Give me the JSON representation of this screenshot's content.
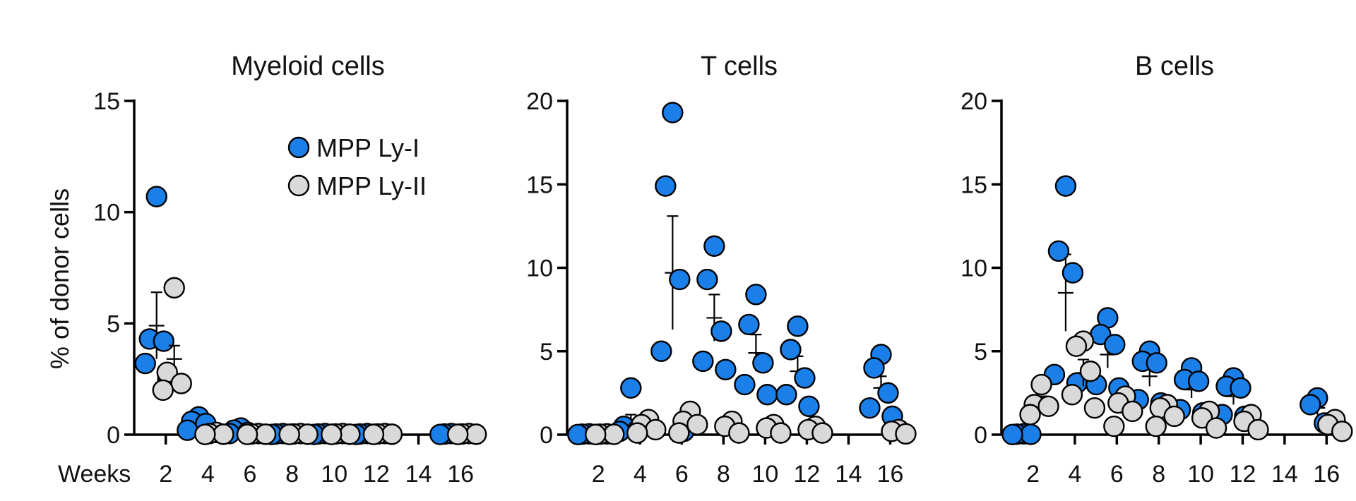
{
  "colors": {
    "mpp_ly_i": "#1a7fe8",
    "mpp_ly_ii": "#d9d9d9",
    "axis": "#000000"
  },
  "figure": {
    "ylabel": "% of donor cells",
    "xunit_label": "Weeks",
    "legend": {
      "items": [
        {
          "label": "MPP Ly-I",
          "color_key": "mpp_ly_i"
        },
        {
          "label": "MPP Ly-II",
          "color_key": "mpp_ly_ii"
        }
      ],
      "placement": "top-right of first panel"
    }
  },
  "chart_data": [
    {
      "type": "scatter",
      "title": "Myeloid cells",
      "xlabel": "",
      "ylabel": "% of donor cells",
      "xticks": [
        2,
        4,
        6,
        8,
        10,
        12,
        14,
        16
      ],
      "yticks": [
        0,
        5,
        10,
        15
      ],
      "ylim": [
        0,
        15
      ],
      "xlim": [
        0.5,
        17
      ],
      "series": [
        {
          "name": "MPP Ly-I",
          "color_key": "mpp_ly_i",
          "groups": [
            {
              "week": 2,
              "values": [
                10.7,
                4.3,
                4.2,
                3.2,
                2.5
              ],
              "mean": 4.9,
              "sem": 1.5
            },
            {
              "week": 4,
              "values": [
                0.8,
                0.6,
                0.5,
                0.2
              ],
              "mean": 0.5,
              "sem": 0.1
            },
            {
              "week": 6,
              "values": [
                0.3,
                0.2,
                0.1,
                0.05
              ],
              "mean": 0.15,
              "sem": 0.05
            },
            {
              "week": 8,
              "values": [
                0.05,
                0.03,
                0.02,
                0.01
              ],
              "mean": 0.03,
              "sem": 0.01
            },
            {
              "week": 10,
              "values": [
                0.05,
                0.03,
                0.02,
                0.01
              ],
              "mean": 0.03,
              "sem": 0.01
            },
            {
              "week": 12,
              "values": [
                0.05,
                0.03,
                0.02,
                0.01
              ],
              "mean": 0.03,
              "sem": 0.01
            },
            {
              "week": 16,
              "values": [
                0.05,
                0.03,
                0.02,
                0.01
              ],
              "mean": 0.03,
              "sem": 0.01
            }
          ]
        },
        {
          "name": "MPP Ly-II",
          "color_key": "mpp_ly_ii",
          "groups": [
            {
              "week": 2,
              "values": [
                6.6,
                2.8,
                2.3,
                2.0
              ],
              "mean": 3.4,
              "sem": 0.6
            },
            {
              "week": 4,
              "values": [
                0.1,
                0.05,
                0.02,
                0.01
              ],
              "mean": 0.05,
              "sem": 0.02
            },
            {
              "week": 6,
              "values": [
                0.05,
                0.03,
                0.02,
                0.01
              ],
              "mean": 0.03,
              "sem": 0.01
            },
            {
              "week": 8,
              "values": [
                0.05,
                0.03,
                0.02,
                0.01
              ],
              "mean": 0.03,
              "sem": 0.01
            },
            {
              "week": 10,
              "values": [
                0.05,
                0.03,
                0.02,
                0.01
              ],
              "mean": 0.03,
              "sem": 0.01
            },
            {
              "week": 12,
              "values": [
                0.05,
                0.03,
                0.02,
                0.01
              ],
              "mean": 0.03,
              "sem": 0.01
            },
            {
              "week": 16,
              "values": [
                0.05,
                0.03,
                0.02,
                0.01
              ],
              "mean": 0.03,
              "sem": 0.01
            }
          ]
        }
      ]
    },
    {
      "type": "scatter",
      "title": "T cells",
      "xlabel": "",
      "ylabel": "",
      "xticks": [
        2,
        4,
        6,
        8,
        10,
        12,
        14,
        16
      ],
      "yticks": [
        0,
        5,
        10,
        15,
        20
      ],
      "ylim": [
        0,
        20
      ],
      "xlim": [
        0.5,
        17
      ],
      "series": [
        {
          "name": "MPP Ly-I",
          "color_key": "mpp_ly_i",
          "groups": [
            {
              "week": 2,
              "values": [
                0.05,
                0.03,
                0.02,
                0.01
              ],
              "mean": 0.03,
              "sem": 0.01
            },
            {
              "week": 4,
              "values": [
                2.8,
                0.5,
                0.3,
                0.2
              ],
              "mean": 0.9,
              "sem": 0.3
            },
            {
              "week": 6,
              "values": [
                19.3,
                14.9,
                9.3,
                5.0,
                0.2
              ],
              "mean": 9.7,
              "sem": 3.4
            },
            {
              "week": 8,
              "values": [
                11.3,
                9.3,
                6.2,
                4.4,
                3.9
              ],
              "mean": 7.0,
              "sem": 1.4
            },
            {
              "week": 10,
              "values": [
                8.4,
                6.6,
                4.3,
                3.0,
                2.4
              ],
              "mean": 4.9,
              "sem": 1.1
            },
            {
              "week": 12,
              "values": [
                6.5,
                5.1,
                3.4,
                2.4,
                1.7
              ],
              "mean": 3.8,
              "sem": 0.9
            },
            {
              "week": 16,
              "values": [
                4.8,
                4.0,
                2.5,
                1.6,
                1.1
              ],
              "mean": 2.8,
              "sem": 0.7
            }
          ]
        },
        {
          "name": "MPP Ly-II",
          "color_key": "mpp_ly_ii",
          "groups": [
            {
              "week": 2,
              "values": [
                0.05,
                0.03,
                0.02,
                0.01
              ],
              "mean": 0.03,
              "sem": 0.01
            },
            {
              "week": 4,
              "values": [
                0.9,
                0.6,
                0.3,
                0.1
              ],
              "mean": 0.5,
              "sem": 0.2
            },
            {
              "week": 6,
              "values": [
                1.4,
                0.8,
                0.6,
                0.1
              ],
              "mean": 0.7,
              "sem": 0.3
            },
            {
              "week": 8,
              "values": [
                0.8,
                0.5,
                0.1
              ],
              "mean": 0.5,
              "sem": 0.2
            },
            {
              "week": 10,
              "values": [
                0.6,
                0.4,
                0.1
              ],
              "mean": 0.4,
              "sem": 0.15
            },
            {
              "week": 12,
              "values": [
                0.5,
                0.3,
                0.1
              ],
              "mean": 0.3,
              "sem": 0.1
            },
            {
              "week": 16,
              "values": [
                0.3,
                0.2,
                0.05
              ],
              "mean": 0.2,
              "sem": 0.1
            }
          ]
        }
      ]
    },
    {
      "type": "scatter",
      "title": "B cells",
      "xlabel": "",
      "ylabel": "",
      "xticks": [
        2,
        4,
        6,
        8,
        10,
        12,
        14,
        16
      ],
      "yticks": [
        0,
        5,
        10,
        15,
        20
      ],
      "ylim": [
        0,
        20
      ],
      "xlim": [
        0.5,
        17
      ],
      "series": [
        {
          "name": "MPP Ly-I",
          "color_key": "mpp_ly_i",
          "groups": [
            {
              "week": 2,
              "values": [
                0.05,
                0.03,
                0.02,
                0.01
              ],
              "mean": 0.03,
              "sem": 0.01
            },
            {
              "week": 4,
              "values": [
                14.9,
                11.0,
                9.7,
                3.6,
                3.1
              ],
              "mean": 8.5,
              "sem": 2.3
            },
            {
              "week": 6,
              "values": [
                7.0,
                6.0,
                5.4,
                3.0,
                2.8
              ],
              "mean": 4.8,
              "sem": 0.8
            },
            {
              "week": 8,
              "values": [
                5.0,
                4.4,
                4.3,
                2.1,
                1.9
              ],
              "mean": 3.5,
              "sem": 0.6
            },
            {
              "week": 10,
              "values": [
                4.0,
                3.3,
                3.2,
                1.5,
                1.3
              ],
              "mean": 2.7,
              "sem": 0.5
            },
            {
              "week": 12,
              "values": [
                3.4,
                2.9,
                2.8,
                1.2,
                1.1
              ],
              "mean": 2.3,
              "sem": 0.5
            },
            {
              "week": 16,
              "values": [
                2.2,
                1.8,
                0.7
              ],
              "mean": 1.6,
              "sem": 0.4
            }
          ]
        },
        {
          "name": "MPP Ly-II",
          "color_key": "mpp_ly_ii",
          "groups": [
            {
              "week": 2,
              "values": [
                3.0,
                1.8,
                1.7,
                1.2
              ],
              "mean": 1.9,
              "sem": 0.4
            },
            {
              "week": 4,
              "values": [
                5.6,
                5.3,
                3.8,
                2.4,
                1.6
              ],
              "mean": 3.7,
              "sem": 0.8
            },
            {
              "week": 6,
              "values": [
                2.3,
                1.9,
                1.4,
                0.5
              ],
              "mean": 1.5,
              "sem": 0.4
            },
            {
              "week": 8,
              "values": [
                1.8,
                1.6,
                1.1,
                0.5
              ],
              "mean": 1.3,
              "sem": 0.3
            },
            {
              "week": 10,
              "values": [
                1.4,
                1.0,
                0.4
              ],
              "mean": 0.9,
              "sem": 0.3
            },
            {
              "week": 12,
              "values": [
                1.2,
                0.8,
                0.3
              ],
              "mean": 0.8,
              "sem": 0.3
            },
            {
              "week": 16,
              "values": [
                0.9,
                0.6,
                0.2
              ],
              "mean": 0.6,
              "sem": 0.2
            }
          ]
        }
      ]
    }
  ]
}
